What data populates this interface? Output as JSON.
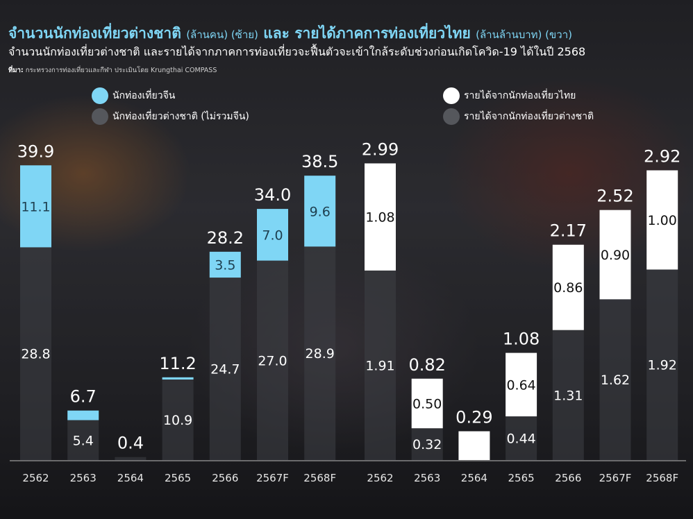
{
  "title": {
    "part1": "จำนวนนักท่องเที่ยวต่างชาติ",
    "part1_unit": "(ล้านคน) (ซ้าย)",
    "connector": "และ",
    "part2": "รายได้ภาคการท่องเที่ยวไทย",
    "part2_unit": "(ล้านล้านบาท) (ขวา)"
  },
  "subtitle": "จำนวนนักท่องเที่ยวต่างชาติ และรายได้จากภาคการท่องเที่ยวจะฟื้นตัวจะเข้าใกล้ระดับช่วงก่อนเกิดโควิด-19 ได้ในปี 2568",
  "source": {
    "label": "ที่มา:",
    "text": "กระทรวงการท่องเที่ยวและกีฬา ประเมินโดย Krungthai COMPASS"
  },
  "colors": {
    "china": "#7fd6f5",
    "foreign_visitors": "#3e4045",
    "thai_revenue": "#ffffff",
    "foreign_revenue": "#3e4045"
  },
  "chart_data": [
    {
      "type": "bar",
      "stacked": true,
      "categories": [
        "2562",
        "2563",
        "2564",
        "2565",
        "2566",
        "2567F",
        "2568F"
      ],
      "series": [
        {
          "name": "นักท่องเที่ยวต่างชาติ (ไม่รวมจีน)",
          "values": [
            28.8,
            5.4,
            0.4,
            10.9,
            24.7,
            27.0,
            28.9
          ],
          "labels": [
            "28.8",
            "5.4",
            "",
            "10.9",
            "24.7",
            "27.0",
            "28.9"
          ]
        },
        {
          "name": "นักท่องเที่ยวจีน",
          "values": [
            11.1,
            1.3,
            0.0,
            0.3,
            3.5,
            7.0,
            9.6
          ],
          "labels": [
            "11.1",
            "",
            "",
            "",
            "3.5",
            "7.0",
            "9.6"
          ]
        }
      ],
      "totals": [
        39.9,
        6.7,
        0.4,
        11.2,
        28.2,
        34.0,
        38.5
      ],
      "total_labels": [
        "39.9",
        "6.7",
        "0.4",
        "11.2",
        "28.2",
        "34.0",
        "38.5"
      ],
      "ylim": [
        0,
        45
      ],
      "grid": false,
      "legend": "top-left"
    },
    {
      "type": "bar",
      "stacked": true,
      "categories": [
        "2562",
        "2563",
        "2564",
        "2565",
        "2566",
        "2567F",
        "2568F"
      ],
      "series": [
        {
          "name": "รายได้จากนักท่องเที่ยวต่างชาติ",
          "values": [
            1.91,
            0.32,
            0.0,
            0.44,
            1.31,
            1.62,
            1.92
          ],
          "labels": [
            "1.91",
            "0.32",
            "",
            "0.44",
            "1.31",
            "1.62",
            "1.92"
          ]
        },
        {
          "name": "รายได้จากนักท่องเที่ยวไทย",
          "values": [
            1.08,
            0.5,
            0.29,
            0.64,
            0.86,
            0.9,
            1.0
          ],
          "labels": [
            "1.08",
            "0.50",
            "",
            "0.64",
            "0.86",
            "0.90",
            "1.00"
          ]
        }
      ],
      "totals": [
        2.99,
        0.82,
        0.29,
        1.08,
        2.17,
        2.52,
        2.92
      ],
      "total_labels": [
        "2.99",
        "0.82",
        "0.29",
        "1.08",
        "2.17",
        "2.52",
        "2.92"
      ],
      "ylim": [
        0,
        3.35
      ],
      "grid": false,
      "legend": "top-right"
    }
  ]
}
